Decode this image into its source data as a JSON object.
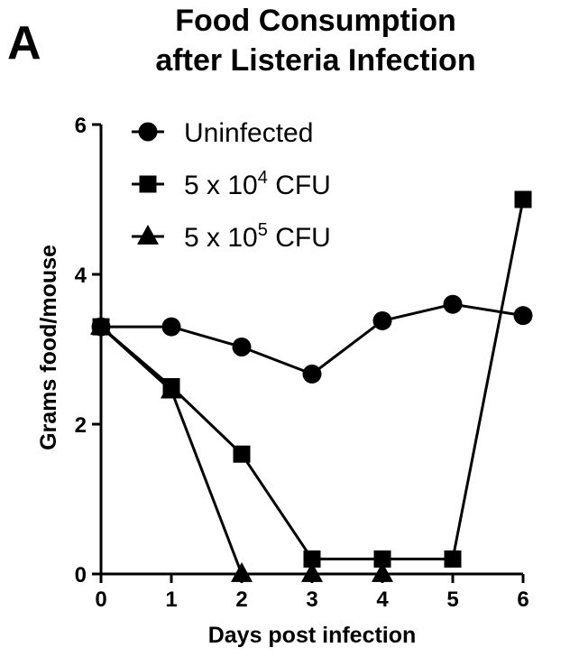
{
  "panel_label": "A",
  "colors": {
    "ink": "#000000",
    "background": "#ffffff"
  },
  "chart_data": {
    "type": "line",
    "title": [
      "Food Consumption",
      "after Listeria Infection"
    ],
    "xlabel": "Days post infection",
    "ylabel": "Grams food/mouse",
    "xlim": [
      0,
      6
    ],
    "ylim": [
      0,
      6
    ],
    "xticks": [
      0,
      1,
      2,
      3,
      4,
      5,
      6
    ],
    "yticks": [
      0,
      2,
      4,
      6
    ],
    "grid": false,
    "legend_position": "top-left",
    "series": [
      {
        "name": "Uninfected",
        "marker": "circle",
        "name_parts": {
          "base": "Uninfected",
          "exp": "",
          "suffix": ""
        },
        "x": [
          0,
          1,
          2,
          3,
          4,
          5,
          6
        ],
        "y": [
          3.3,
          3.3,
          3.03,
          2.67,
          3.38,
          3.6,
          3.45
        ]
      },
      {
        "name": "5 x 10⁴ CFU",
        "marker": "square",
        "name_parts": {
          "base": "5 x 10",
          "exp": "4",
          "suffix": " CFU"
        },
        "x": [
          0,
          1,
          2,
          3,
          4,
          5,
          6
        ],
        "y": [
          3.3,
          2.5,
          1.6,
          0.2,
          0.2,
          0.2,
          5.0
        ]
      },
      {
        "name": "5 x 10⁵ CFU",
        "marker": "triangle",
        "name_parts": {
          "base": "5 x 10",
          "exp": "5",
          "suffix": " CFU"
        },
        "x": [
          0,
          1,
          2,
          3,
          4
        ],
        "y": [
          3.3,
          2.45,
          0,
          0,
          0
        ]
      }
    ]
  }
}
